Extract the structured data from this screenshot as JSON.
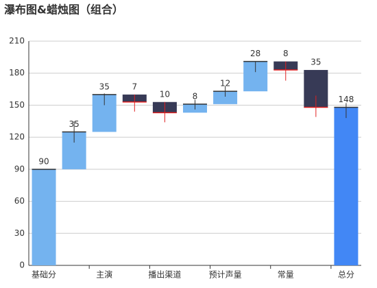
{
  "chart_data": {
    "type": "waterfall",
    "title": "瀑布图&蜡烛图（组合）",
    "categories": [
      "基础分",
      null,
      "主演",
      null,
      "播出渠道",
      null,
      "预计声量",
      null,
      "常量",
      null,
      "总分"
    ],
    "measure": [
      "absolute",
      "relative",
      "relative",
      "relative",
      "relative",
      "relative",
      "relative",
      "relative",
      "relative",
      "relative",
      "total"
    ],
    "values": [
      90,
      35,
      35,
      -7,
      -10,
      8,
      12,
      28,
      -8,
      -35,
      148
    ],
    "value_labels": [
      "90",
      "35",
      "35",
      "7",
      "10",
      "8",
      "12",
      "28",
      "8",
      "35",
      "148"
    ],
    "wick_low": [
      null,
      115,
      150,
      144,
      134,
      146,
      158,
      181,
      173,
      139,
      138
    ],
    "wick_high": [
      null,
      135,
      161,
      160,
      153,
      155,
      168,
      191,
      191,
      159,
      152
    ],
    "colors": {
      "increase": "#74b3ef",
      "decrease": "#373a56",
      "total": "#4287f5",
      "wick": "#333333",
      "close_line": "#e02020"
    },
    "ylim": [
      0,
      210
    ],
    "yticks": [
      0,
      30,
      60,
      90,
      120,
      150,
      180,
      210
    ],
    "grid": true
  }
}
